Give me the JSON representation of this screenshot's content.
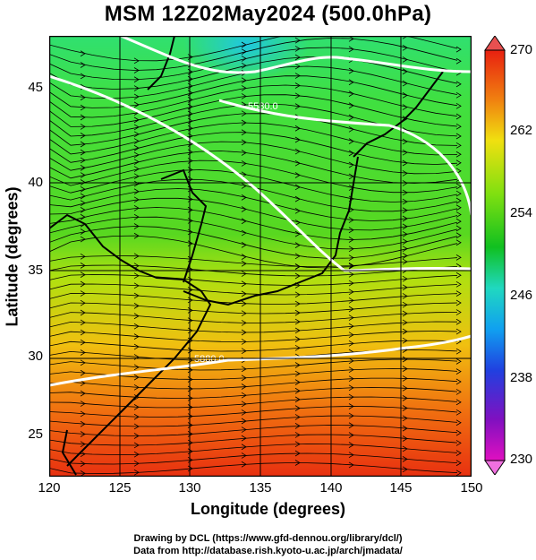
{
  "title": "MSM 12Z02May2024 (500.0hPa)",
  "x_axis": {
    "label": "Longitude (degrees)",
    "ticks": [
      "120",
      "125",
      "130",
      "135",
      "140",
      "145",
      "150"
    ]
  },
  "y_axis": {
    "label": "Latitude  (degrees)",
    "ticks": [
      "25",
      "30",
      "35",
      "40",
      "45"
    ]
  },
  "colorbar": {
    "ticks": [
      "270",
      "262",
      "254",
      "246",
      "238",
      "230"
    ],
    "min": 230,
    "max": 270
  },
  "contour_labels": {
    "upper": "5580.0",
    "lower": "5880.0"
  },
  "credits": {
    "line1": "Drawing by DCL (https://www.gfd-dennou.org/library/dcl/)",
    "line2": "Data from http://database.rish.kyoto-u.ac.jp/arch/jmadata/"
  },
  "colors": {
    "low": "#c800c8",
    "mid": "#10c010",
    "high": "#e02010",
    "contour": "#ffffff",
    "coast": "#000000"
  }
}
